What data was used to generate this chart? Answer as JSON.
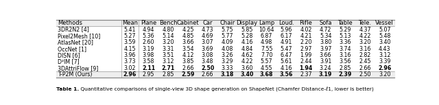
{
  "columns": [
    "Methods",
    "Mean",
    "Plane",
    "Bench",
    "Cabinet",
    "Car",
    "Chair",
    "Display",
    "Lamp",
    "Loud.",
    "Rifle",
    "Sofa",
    "Table",
    "Tele.",
    "Vessel"
  ],
  "rows": [
    [
      "3DR2N2 [4]",
      "5.41",
      "4.94",
      "4.80",
      "4.25",
      "4.73",
      "5.75",
      "5.85",
      "10.64",
      "5.96",
      "4.02",
      "4.72",
      "5.29",
      "4.37",
      "5.07"
    ],
    [
      "Pixel2Mesh [10]",
      "5.27",
      "5.36",
      "5.14",
      "4.85",
      "4.69",
      "5.77",
      "5.28",
      "6.87",
      "6.17",
      "4.21",
      "5.34",
      "5.13",
      "4.22",
      "5.48"
    ],
    [
      "AtlasNet [20]",
      "3.59",
      "2.60",
      "3.20",
      "3.66",
      "3.07",
      "4.09",
      "4.16",
      "4.98",
      "4.91",
      "2.20",
      "3.80",
      "3.36",
      "3.20",
      "3.40"
    ],
    [
      "OccNet [1]",
      "4.15",
      "3.19",
      "3.31",
      "3.54",
      "3.69",
      "4.08",
      "4.84",
      "7.55",
      "5.47",
      "2.97",
      "3.97",
      "3.74",
      "3.16",
      "4.43"
    ],
    [
      "DISN [6]",
      "3.96",
      "3.98",
      "3.51",
      "4.12",
      "3.08",
      "3.26",
      "4.62",
      "7.70",
      "6.47",
      "1.99",
      "3.66",
      "3.16",
      "2.82",
      "3.12"
    ],
    [
      "D²IM [7]",
      "3.73",
      "3.58",
      "3.12",
      "3.85",
      "3.48",
      "3.29",
      "4.22",
      "5.57",
      "5.61",
      "2.44",
      "3.91",
      "3.56",
      "2.45",
      "3.39"
    ],
    [
      "3DAttriFlow [9]",
      "3.02",
      "2.11",
      "2.71",
      "2.66",
      "2.50",
      "3.33",
      "3.60",
      "4.55",
      "4.16",
      "1.94",
      "3.24",
      "2.85",
      "2.66",
      "2.96"
    ]
  ],
  "ours_row": [
    "T-P2M (Ours)",
    "2.96",
    "2.95",
    "2.85",
    "2.59",
    "2.66",
    "3.18",
    "3.40",
    "3.68",
    "3.56",
    "2.37",
    "3.19",
    "2.39",
    "2.50",
    "3.20"
  ],
  "bold_ours": [
    false,
    true,
    false,
    false,
    true,
    false,
    true,
    true,
    true,
    true,
    false,
    true,
    true,
    false,
    false
  ],
  "bold_attriflow": [
    false,
    false,
    true,
    true,
    false,
    true,
    false,
    false,
    false,
    false,
    true,
    false,
    false,
    false,
    true
  ],
  "caption": "Table 1. Quantitative comparisons of single-view 3D shape generation on ShapeNet (Chamfer Distance-ℓ1, lower is better)",
  "line_color": "#888888",
  "text_color": "#000000",
  "caption_color": "#000000"
}
